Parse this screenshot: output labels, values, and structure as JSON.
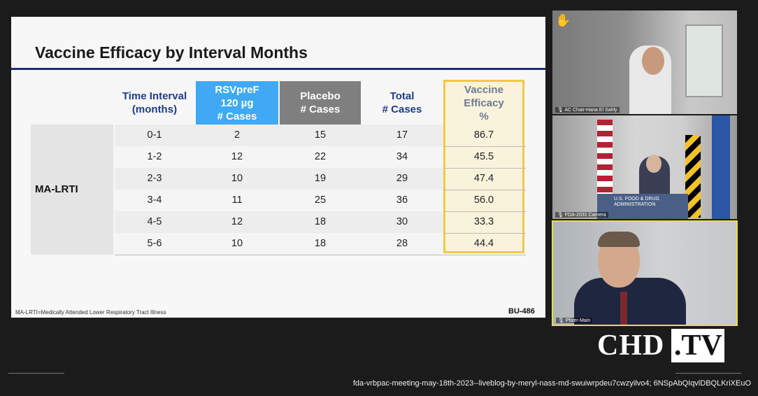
{
  "slide": {
    "title": "Vaccine Efficacy by Interval Months",
    "footnote": "MA-LRTI=Medically Attended Lower Respiratory Tract Illness",
    "slide_number": "BU-486",
    "group_label": "MA-LRTI",
    "columns": [
      "Time Interval\n(months)",
      "RSVpreF\n120 µg\n# Cases",
      "Placebo\n# Cases",
      "Total\n# Cases",
      "Vaccine\nEfficacy\n%"
    ],
    "rows": [
      [
        "0-1",
        "2",
        "15",
        "17",
        "86.7"
      ],
      [
        "1-2",
        "12",
        "22",
        "34",
        "45.5"
      ],
      [
        "2-3",
        "10",
        "19",
        "29",
        "47.4"
      ],
      [
        "3-4",
        "11",
        "25",
        "36",
        "56.0"
      ],
      [
        "4-5",
        "12",
        "18",
        "30",
        "33.3"
      ],
      [
        "5-6",
        "10",
        "18",
        "28",
        "44.4"
      ]
    ]
  },
  "participants": [
    {
      "label": "AC Chair-Hana El Sahly",
      "icon": "raised-hand-icon"
    },
    {
      "label": "FDA-2031 Camera",
      "icon": "microphone-icon"
    },
    {
      "label": "Pfizer-Main",
      "icon": "microphone-icon"
    }
  ],
  "podium_text": "U.S. FOOD & DRUG\nADMINISTRATION",
  "brand": {
    "left": "CHD",
    "right": "TV",
    "dot": "."
  },
  "caption": "fda-vrbpac-meeting-may-18th-2023--liveblog-by-meryl-nass-md-swuiwrpdeu7cwzyilvo4; 6NSpAbQIqvlDBQLKriXEuO",
  "colors": {
    "header_blue": "#3fa9f5",
    "header_gray": "#7f7f7f",
    "title_rule": "#1f2d7a",
    "highlight": "#f1c84b",
    "active_speaker_border": "#e6e03a"
  }
}
